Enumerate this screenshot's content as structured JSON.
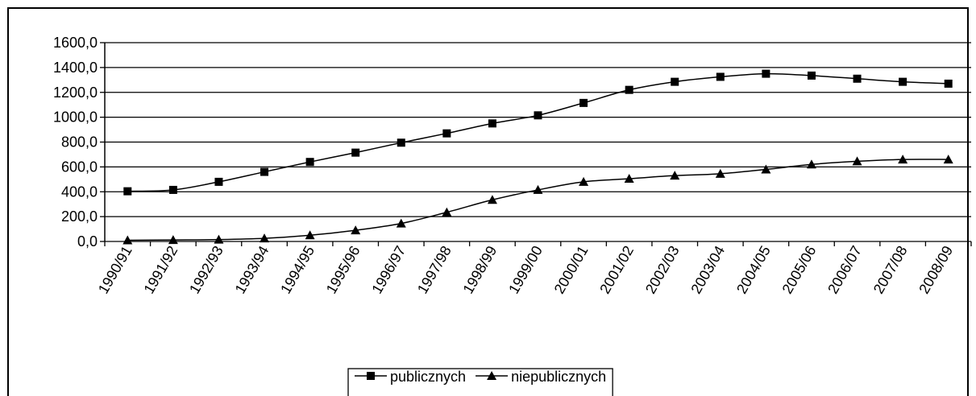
{
  "chart_data": {
    "type": "line",
    "categories": [
      "1990/91",
      "1991/92",
      "1992/93",
      "1993/94",
      "1994/95",
      "1995/96",
      "1996/97",
      "1997/98",
      "1998/99",
      "1999/00",
      "2000/01",
      "2001/02",
      "2002/03",
      "2003/04",
      "2004/05",
      "2005/06",
      "2006/07",
      "2007/08",
      "2008/09"
    ],
    "series": [
      {
        "name": "publicznych",
        "color": "#000000",
        "marker": "square",
        "values": [
          404,
          415,
          480,
          560,
          640,
          715,
          795,
          870,
          950,
          1015,
          1115,
          1220,
          1285,
          1325,
          1350,
          1335,
          1310,
          1285,
          1270
        ]
      },
      {
        "name": "niepublicznych",
        "color": "#000000",
        "marker": "triangle",
        "values": [
          10,
          12,
          15,
          25,
          50,
          90,
          145,
          235,
          335,
          415,
          480,
          505,
          530,
          545,
          580,
          620,
          645,
          660,
          660
        ]
      }
    ],
    "ylim": [
      0,
      1600
    ],
    "yticks": [
      {
        "value": 0,
        "label": "0,0"
      },
      {
        "value": 200,
        "label": "200,0"
      },
      {
        "value": 400,
        "label": "400,0"
      },
      {
        "value": 600,
        "label": "600,0"
      },
      {
        "value": 800,
        "label": "800,0"
      },
      {
        "value": 1000,
        "label": "1000,0"
      },
      {
        "value": 1200,
        "label": "1200,0"
      },
      {
        "value": 1400,
        "label": "1400,0"
      },
      {
        "value": 1600,
        "label": "1600,0"
      }
    ],
    "grid": true,
    "legend": "bottom"
  }
}
